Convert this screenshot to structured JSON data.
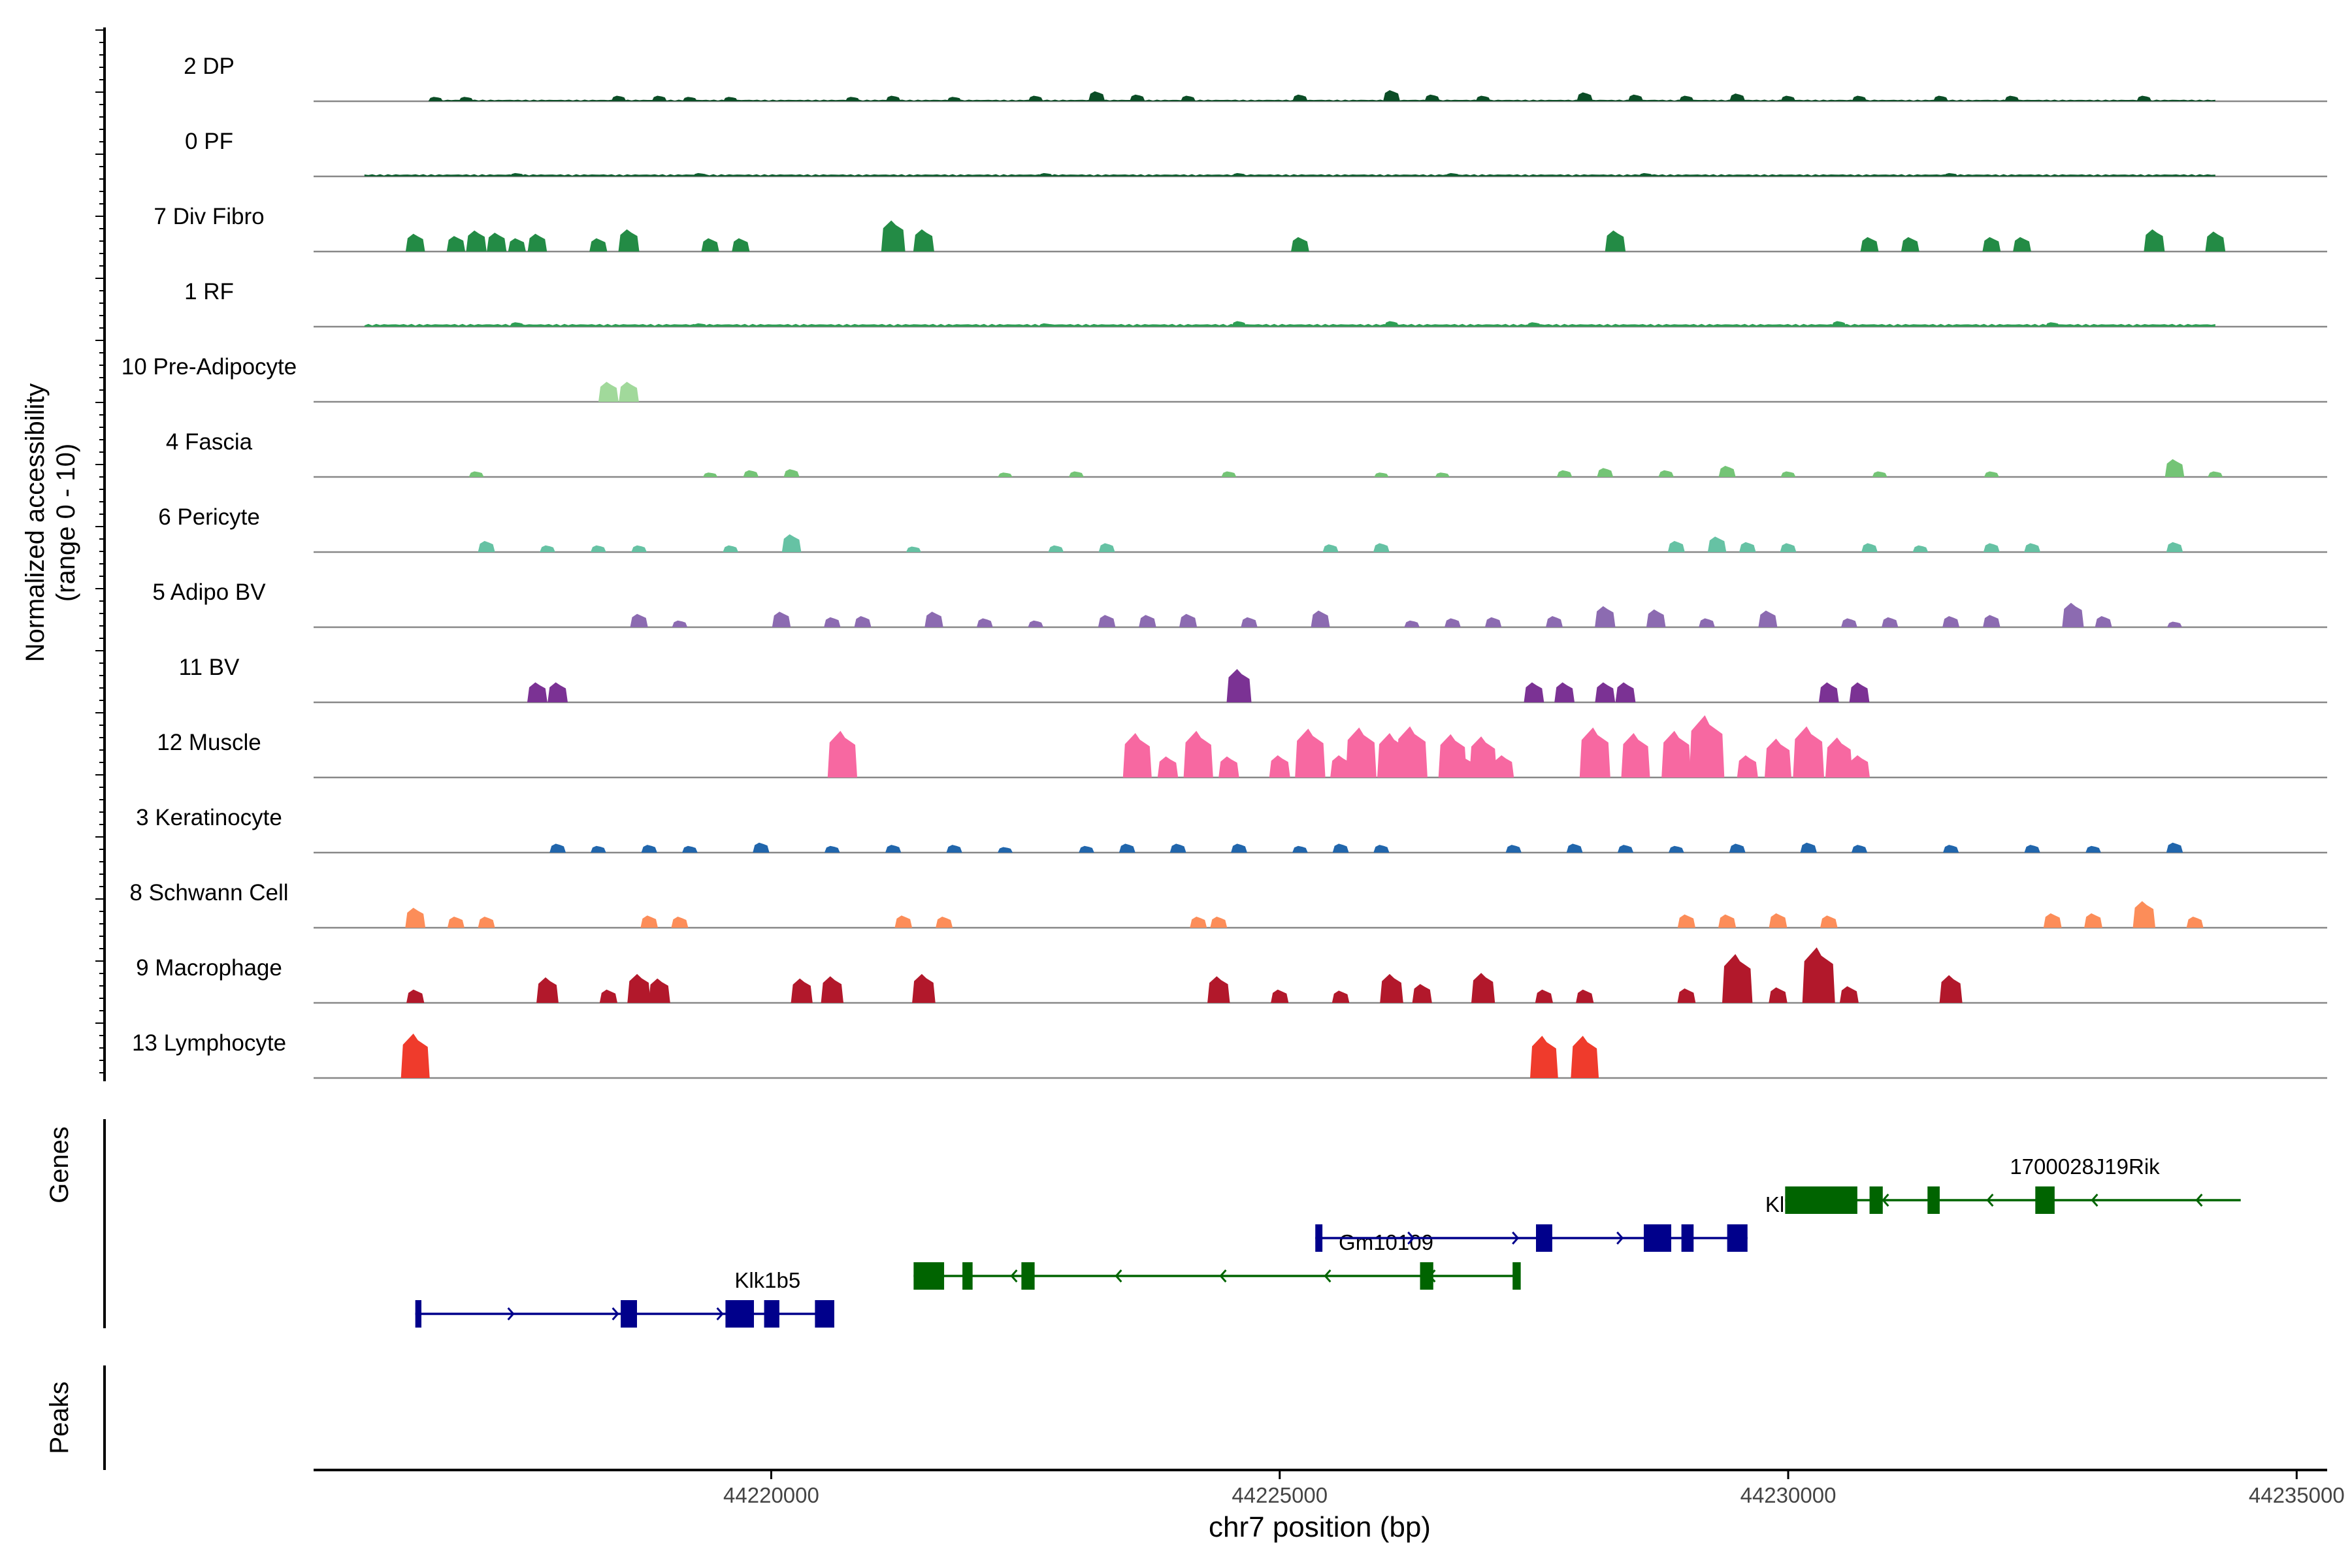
{
  "chart_data": {
    "type": "area",
    "title": "",
    "ylabel_line1": "Normalized accessibility",
    "ylabel_line2": "(range 0 - 10)",
    "xlabel": "chr7 position (bp)",
    "xlim": [
      44215500,
      44235300
    ],
    "ylim": [
      0,
      10
    ],
    "xticks": [
      44220000,
      44225000,
      44230000,
      44235000
    ],
    "xtick_labels": [
      "44220000",
      "44225000",
      "44230000",
      "44235000"
    ],
    "genes_label": "Genes",
    "peaks_label": "Peaks",
    "tracks": [
      {
        "name": "2 DP",
        "color": "#0b4d26",
        "peaks": [
          [
            44216700,
            0.4
          ],
          [
            44217000,
            0.4
          ],
          [
            44218500,
            0.5
          ],
          [
            44218900,
            0.5
          ],
          [
            44219200,
            0.4
          ],
          [
            44219600,
            0.4
          ],
          [
            44220800,
            0.4
          ],
          [
            44221200,
            0.5
          ],
          [
            44221800,
            0.4
          ],
          [
            44222600,
            0.5
          ],
          [
            44223200,
            0.9
          ],
          [
            44223600,
            0.6
          ],
          [
            44224100,
            0.5
          ],
          [
            44225200,
            0.6
          ],
          [
            44226100,
            1.0
          ],
          [
            44226500,
            0.6
          ],
          [
            44227000,
            0.5
          ],
          [
            44228000,
            0.8
          ],
          [
            44228500,
            0.6
          ],
          [
            44229000,
            0.5
          ],
          [
            44229500,
            0.7
          ],
          [
            44230000,
            0.5
          ],
          [
            44230700,
            0.5
          ],
          [
            44231500,
            0.5
          ],
          [
            44232200,
            0.5
          ],
          [
            44233500,
            0.5
          ]
        ],
        "floor": [
          44216700,
          44234200,
          0.15
        ]
      },
      {
        "name": "0 PF",
        "color": "#0f5d2f",
        "peaks": [
          [
            44217500,
            0.3
          ],
          [
            44219300,
            0.3
          ],
          [
            44222700,
            0.3
          ],
          [
            44224600,
            0.3
          ],
          [
            44226700,
            0.3
          ],
          [
            44228600,
            0.3
          ],
          [
            44231600,
            0.3
          ]
        ],
        "floor": [
          44216000,
          44234200,
          0.2
        ]
      },
      {
        "name": "7 Div Fibro",
        "color": "#238b45",
        "peaks": [
          [
            44216500,
            1.6
          ],
          [
            44216900,
            1.4
          ],
          [
            44217100,
            1.9
          ],
          [
            44217300,
            1.7
          ],
          [
            44217500,
            1.2
          ],
          [
            44217700,
            1.6
          ],
          [
            44218300,
            1.2
          ],
          [
            44218600,
            2.0
          ],
          [
            44219400,
            1.2
          ],
          [
            44219700,
            1.2
          ],
          [
            44221200,
            2.8
          ],
          [
            44221500,
            2.0
          ],
          [
            44225200,
            1.3
          ],
          [
            44228300,
            1.9
          ],
          [
            44230800,
            1.3
          ],
          [
            44231200,
            1.3
          ],
          [
            44232000,
            1.3
          ],
          [
            44232300,
            1.3
          ],
          [
            44233600,
            2.0
          ],
          [
            44234200,
            1.8
          ]
        ],
        "floor": null
      },
      {
        "name": "1 RF",
        "color": "#2e9e54",
        "peaks": [
          [
            44217500,
            0.4
          ],
          [
            44219300,
            0.3
          ],
          [
            44222700,
            0.3
          ],
          [
            44224600,
            0.5
          ],
          [
            44226100,
            0.5
          ],
          [
            44227500,
            0.4
          ],
          [
            44230500,
            0.5
          ],
          [
            44232600,
            0.4
          ]
        ],
        "floor": [
          44216000,
          44234200,
          0.25
        ]
      },
      {
        "name": "10 Pre-Adipocyte",
        "color": "#a1d99b",
        "peaks": [
          [
            44218400,
            1.8
          ],
          [
            44218600,
            1.8
          ]
        ],
        "floor": null
      },
      {
        "name": "4 Fascia",
        "color": "#74c476",
        "peaks": [
          [
            44217100,
            0.5
          ],
          [
            44219400,
            0.4
          ],
          [
            44219800,
            0.6
          ],
          [
            44220200,
            0.7
          ],
          [
            44222300,
            0.4
          ],
          [
            44223000,
            0.5
          ],
          [
            44224500,
            0.5
          ],
          [
            44226000,
            0.4
          ],
          [
            44226600,
            0.4
          ],
          [
            44227800,
            0.6
          ],
          [
            44228200,
            0.8
          ],
          [
            44228800,
            0.6
          ],
          [
            44229400,
            1.0
          ],
          [
            44230000,
            0.5
          ],
          [
            44230900,
            0.5
          ],
          [
            44232000,
            0.5
          ],
          [
            44233800,
            1.6
          ],
          [
            44234200,
            0.5
          ]
        ],
        "floor": null
      },
      {
        "name": "6 Pericyte",
        "color": "#66c2a4",
        "peaks": [
          [
            44217200,
            1.0
          ],
          [
            44217800,
            0.6
          ],
          [
            44218300,
            0.6
          ],
          [
            44218700,
            0.6
          ],
          [
            44219600,
            0.6
          ],
          [
            44220200,
            1.6
          ],
          [
            44221400,
            0.5
          ],
          [
            44222800,
            0.6
          ],
          [
            44223300,
            0.8
          ],
          [
            44225500,
            0.7
          ],
          [
            44226000,
            0.8
          ],
          [
            44228900,
            1.0
          ],
          [
            44229300,
            1.4
          ],
          [
            44229600,
            0.9
          ],
          [
            44230000,
            0.8
          ],
          [
            44230800,
            0.8
          ],
          [
            44231300,
            0.6
          ],
          [
            44232000,
            0.8
          ],
          [
            44232400,
            0.8
          ],
          [
            44233800,
            0.9
          ]
        ],
        "floor": null
      },
      {
        "name": "5 Adipo BV",
        "color": "#8c6bb1",
        "peaks": [
          [
            44218700,
            1.2
          ],
          [
            44219100,
            0.6
          ],
          [
            44220100,
            1.4
          ],
          [
            44220600,
            0.9
          ],
          [
            44220900,
            1.0
          ],
          [
            44221600,
            1.4
          ],
          [
            44222100,
            0.8
          ],
          [
            44222600,
            0.6
          ],
          [
            44223300,
            1.1
          ],
          [
            44223700,
            1.1
          ],
          [
            44224100,
            1.2
          ],
          [
            44224700,
            0.9
          ],
          [
            44225400,
            1.5
          ],
          [
            44226300,
            0.6
          ],
          [
            44226700,
            0.8
          ],
          [
            44227100,
            0.9
          ],
          [
            44227700,
            1.0
          ],
          [
            44228200,
            1.9
          ],
          [
            44228700,
            1.6
          ],
          [
            44229200,
            0.8
          ],
          [
            44229800,
            1.5
          ],
          [
            44230600,
            0.8
          ],
          [
            44231000,
            0.9
          ],
          [
            44231600,
            1.0
          ],
          [
            44232000,
            1.1
          ],
          [
            44232800,
            2.2
          ],
          [
            44233100,
            1.0
          ],
          [
            44233800,
            0.5
          ]
        ],
        "floor": null
      },
      {
        "name": "11 BV",
        "color": "#7b3294",
        "peaks": [
          [
            44217700,
            1.8
          ],
          [
            44217900,
            1.8
          ],
          [
            44224600,
            3.0
          ],
          [
            44227500,
            1.8
          ],
          [
            44227800,
            1.8
          ],
          [
            44228200,
            1.8
          ],
          [
            44228400,
            1.8
          ],
          [
            44230400,
            1.8
          ],
          [
            44230700,
            1.8
          ]
        ],
        "floor": null
      },
      {
        "name": "12 Muscle",
        "color": "#f768a1",
        "peaks": [
          [
            44220700,
            4.2
          ],
          [
            44223600,
            4.0
          ],
          [
            44223900,
            1.9
          ],
          [
            44224200,
            4.2
          ],
          [
            44224500,
            1.9
          ],
          [
            44225000,
            2.0
          ],
          [
            44225300,
            4.4
          ],
          [
            44225600,
            2.0
          ],
          [
            44225800,
            4.5
          ],
          [
            44226100,
            4.0
          ],
          [
            44226300,
            4.6
          ],
          [
            44226700,
            3.9
          ],
          [
            44226800,
            2.0
          ],
          [
            44227000,
            3.7
          ],
          [
            44227200,
            2.0
          ],
          [
            44228100,
            4.5
          ],
          [
            44228500,
            4.0
          ],
          [
            44228900,
            4.2
          ],
          [
            44229200,
            5.6
          ],
          [
            44229600,
            2.0
          ],
          [
            44229900,
            3.5
          ],
          [
            44230200,
            4.6
          ],
          [
            44230500,
            3.6
          ],
          [
            44230700,
            2.0
          ]
        ],
        "floor": null
      },
      {
        "name": "3 Keratinocyte",
        "color": "#2166ac",
        "peaks": [
          [
            44217900,
            0.8
          ],
          [
            44218300,
            0.6
          ],
          [
            44218800,
            0.7
          ],
          [
            44219200,
            0.6
          ],
          [
            44219900,
            0.9
          ],
          [
            44220600,
            0.6
          ],
          [
            44221200,
            0.7
          ],
          [
            44221800,
            0.7
          ],
          [
            44222300,
            0.5
          ],
          [
            44223100,
            0.6
          ],
          [
            44223500,
            0.8
          ],
          [
            44224000,
            0.8
          ],
          [
            44224600,
            0.8
          ],
          [
            44225200,
            0.6
          ],
          [
            44225600,
            0.8
          ],
          [
            44226000,
            0.7
          ],
          [
            44227300,
            0.7
          ],
          [
            44227900,
            0.8
          ],
          [
            44228400,
            0.7
          ],
          [
            44228900,
            0.6
          ],
          [
            44229500,
            0.8
          ],
          [
            44230200,
            0.9
          ],
          [
            44230700,
            0.7
          ],
          [
            44231600,
            0.7
          ],
          [
            44232400,
            0.7
          ],
          [
            44233000,
            0.6
          ],
          [
            44233800,
            0.9
          ]
        ],
        "floor": null
      },
      {
        "name": "8 Schwann Cell",
        "color": "#fc8d59",
        "peaks": [
          [
            44216500,
            1.8
          ],
          [
            44216900,
            1.0
          ],
          [
            44217200,
            1.0
          ],
          [
            44218800,
            1.1
          ],
          [
            44219100,
            1.0
          ],
          [
            44221300,
            1.1
          ],
          [
            44221700,
            1.0
          ],
          [
            44224200,
            1.0
          ],
          [
            44224400,
            1.0
          ],
          [
            44229000,
            1.2
          ],
          [
            44229400,
            1.2
          ],
          [
            44229900,
            1.3
          ],
          [
            44230400,
            1.1
          ],
          [
            44232600,
            1.3
          ],
          [
            44233000,
            1.3
          ],
          [
            44233500,
            2.4
          ],
          [
            44234000,
            1.0
          ]
        ],
        "floor": null
      },
      {
        "name": "9 Macrophage",
        "color": "#b2182b",
        "peaks": [
          [
            44216500,
            1.2
          ],
          [
            44217800,
            2.3
          ],
          [
            44218400,
            1.2
          ],
          [
            44218700,
            2.6
          ],
          [
            44218900,
            2.2
          ],
          [
            44220300,
            2.2
          ],
          [
            44220600,
            2.4
          ],
          [
            44221500,
            2.6
          ],
          [
            44224400,
            2.4
          ],
          [
            44225000,
            1.2
          ],
          [
            44225600,
            1.1
          ],
          [
            44226100,
            2.6
          ],
          [
            44226400,
            1.7
          ],
          [
            44227000,
            2.7
          ],
          [
            44227600,
            1.2
          ],
          [
            44228000,
            1.2
          ],
          [
            44229000,
            1.3
          ],
          [
            44229500,
            4.4
          ],
          [
            44229900,
            1.4
          ],
          [
            44230300,
            5.0
          ],
          [
            44230600,
            1.5
          ],
          [
            44231600,
            2.5
          ]
        ],
        "floor": null
      },
      {
        "name": "13 Lymphocyte",
        "color": "#ef3b2c",
        "peaks": [
          [
            44216500,
            4.0
          ],
          [
            44227600,
            3.8
          ],
          [
            44228000,
            3.8
          ]
        ],
        "floor": null
      }
    ],
    "genes": [
      {
        "name": "Klk1b5",
        "strand": "+",
        "color": "#00008b",
        "row": 3,
        "start": 44216500,
        "end": 44220600,
        "exons": [
          [
            44216500,
            44216560
          ],
          [
            44218520,
            44218680
          ],
          [
            44219550,
            44219830
          ],
          [
            44219930,
            44220080
          ],
          [
            44220430,
            44220620
          ]
        ]
      },
      {
        "name": "Gm10109",
        "strand": "-",
        "color": "#006400",
        "row": 2,
        "start": 44221400,
        "end": 44227350,
        "exons": [
          [
            44221400,
            44221700
          ],
          [
            44221880,
            44221980
          ],
          [
            44222460,
            44222590
          ],
          [
            44226380,
            44226510
          ],
          [
            44227290,
            44227370
          ]
        ]
      },
      {
        "name": "Klk1",
        "strand": "+",
        "color": "#00008b",
        "row": 1,
        "start": 44225350,
        "end": 44229600,
        "exons": [
          [
            44225350,
            44225420
          ],
          [
            44227520,
            44227680
          ],
          [
            44228580,
            44228850
          ],
          [
            44228950,
            44229070
          ],
          [
            44229400,
            44229600
          ]
        ]
      },
      {
        "name": "1700028J19Rik",
        "strand": "-",
        "color": "#006400",
        "row": 0,
        "start": 44229970,
        "end": 44234450,
        "exons": [
          [
            44229970,
            44230680
          ],
          [
            44230800,
            44230930
          ],
          [
            44231370,
            44231490
          ],
          [
            44232430,
            44232620
          ]
        ]
      }
    ]
  }
}
